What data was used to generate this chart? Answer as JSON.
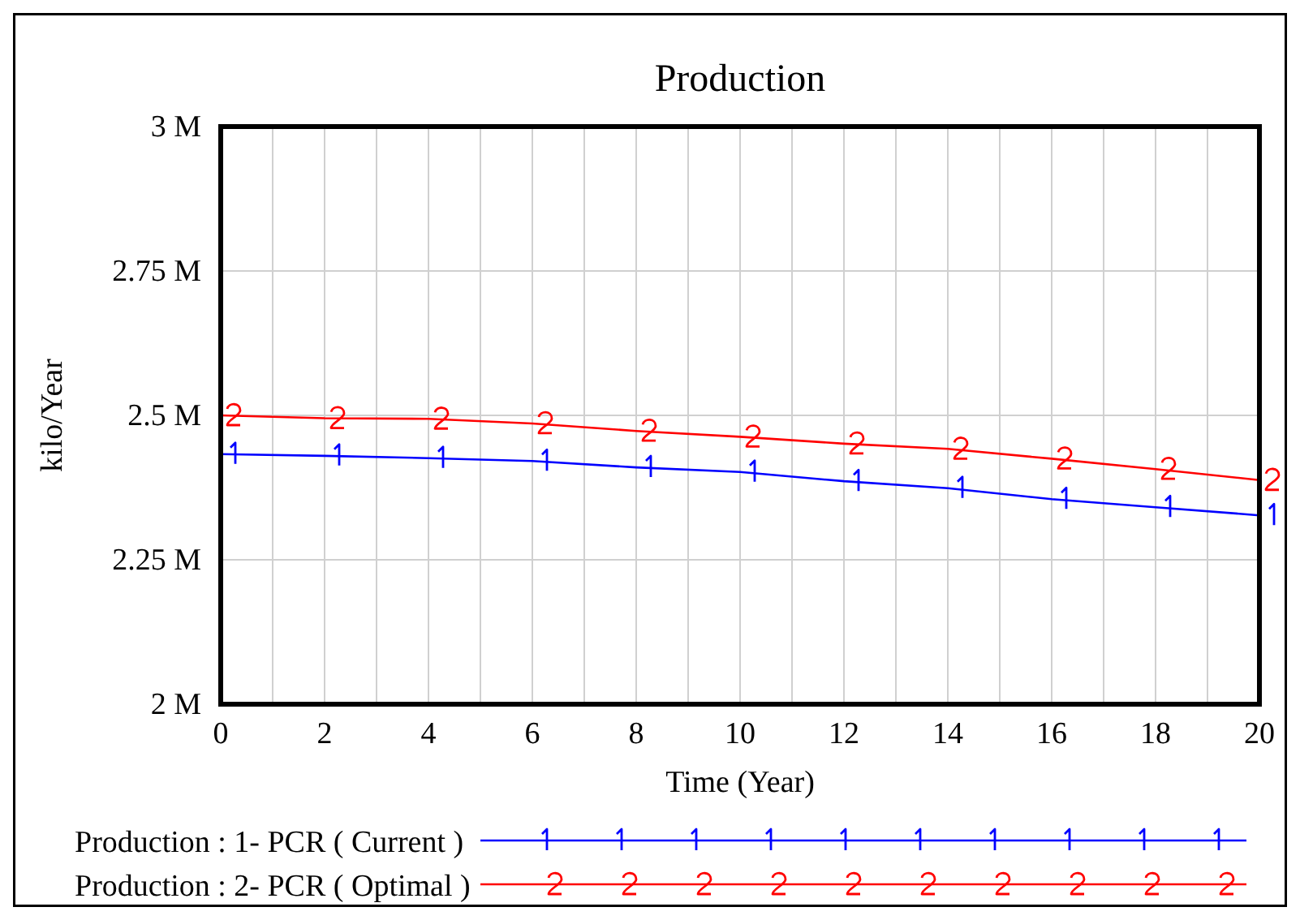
{
  "chart_data": {
    "type": "line",
    "title": "Production",
    "xlabel": "Time (Year)",
    "ylabel": "kilo/Year",
    "x": [
      0,
      2,
      4,
      6,
      8,
      10,
      12,
      14,
      16,
      18,
      20
    ],
    "xlim": [
      0,
      20
    ],
    "xticks": [
      0,
      {
        "value": 1,
        "label": null
      },
      2,
      {
        "value": 3,
        "label": null
      },
      4,
      {
        "value": 5,
        "label": null
      },
      6,
      {
        "value": 7,
        "label": null
      },
      8,
      {
        "value": 9,
        "label": null
      },
      10,
      {
        "value": 11,
        "label": null
      },
      12,
      {
        "value": 13,
        "label": null
      },
      14,
      {
        "value": 15,
        "label": null
      },
      16,
      {
        "value": 17,
        "label": null
      },
      18,
      {
        "value": 19,
        "label": null
      },
      20
    ],
    "ylim": [
      2000000,
      3000000
    ],
    "yticks": [
      {
        "value": 2000000,
        "label": "2 M"
      },
      {
        "value": 2250000,
        "label": "2.25 M"
      },
      {
        "value": 2500000,
        "label": "2.5 M"
      },
      {
        "value": 2750000,
        "label": "2.75 M"
      },
      {
        "value": 3000000,
        "label": "3 M"
      }
    ],
    "grid": true,
    "legend": "bottom",
    "series": [
      {
        "name": "Production : 1- PCR ( Current )",
        "color": "#0000ff",
        "values": [
          2433000,
          2430000,
          2426000,
          2421000,
          2410000,
          2402000,
          2386000,
          2374000,
          2355000,
          2341000,
          2327000
        ]
      },
      {
        "name": "Production : 2- PCR ( Optimal )",
        "color": "#ff0000",
        "values": [
          2500000,
          2495000,
          2494000,
          2486000,
          2473000,
          2463000,
          2451000,
          2442000,
          2425000,
          2407000,
          2388000
        ]
      }
    ]
  }
}
